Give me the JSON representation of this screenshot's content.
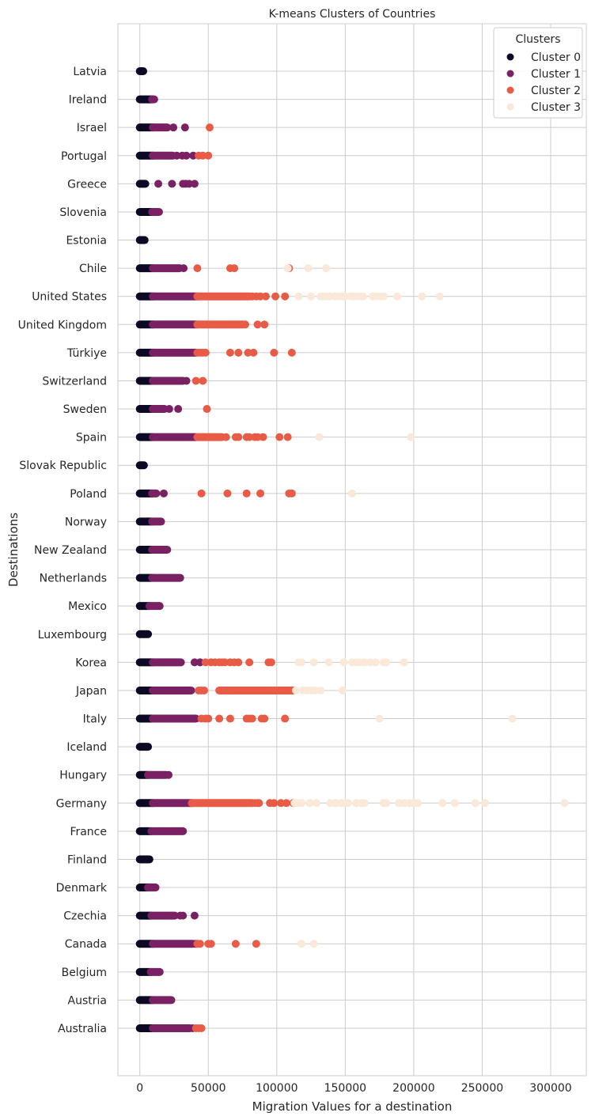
{
  "chart_data": {
    "type": "scatter",
    "title": "K-means Clusters of Countries",
    "xlabel": "Migration Values for a destination",
    "ylabel": "Destinations",
    "xlim": [
      -16000,
      326000
    ],
    "x_ticks": [
      "0",
      "50000",
      "100000",
      "150000",
      "200000",
      "250000",
      "300000"
    ],
    "x_tick_values": [
      0,
      50000,
      100000,
      150000,
      200000,
      250000,
      300000
    ],
    "grid": true,
    "legend": {
      "title": "Clusters",
      "position": "top-right"
    },
    "categories": [
      "Australia",
      "Austria",
      "Belgium",
      "Canada",
      "Czechia",
      "Denmark",
      "Finland",
      "France",
      "Germany",
      "Hungary",
      "Iceland",
      "Italy",
      "Japan",
      "Korea",
      "Luxembourg",
      "Mexico",
      "Netherlands",
      "New Zealand",
      "Norway",
      "Poland",
      "Slovak Republic",
      "Spain",
      "Sweden",
      "Switzerland",
      "Türkiye",
      "United Kingdom",
      "United States",
      "Chile",
      "Estonia",
      "Slovenia",
      "Greece",
      "Portugal",
      "Israel",
      "Ireland",
      "Latvia"
    ],
    "series": [
      {
        "name": "Cluster 0",
        "color": "#0b0924",
        "ranges": {
          "Australia": [
            0,
            9500
          ],
          "Austria": [
            0,
            9500
          ],
          "Belgium": [
            0,
            8000
          ],
          "Canada": [
            0,
            9500
          ],
          "Czechia": [
            0,
            8500
          ],
          "Denmark": [
            0,
            6000
          ],
          "Finland": [
            0,
            7000
          ],
          "France": [
            0,
            8500
          ],
          "Germany": [
            0,
            9500
          ],
          "Hungary": [
            0,
            6000
          ],
          "Iceland": [
            0,
            6000
          ],
          "Italy": [
            0,
            9500
          ],
          "Japan": [
            0,
            9500
          ],
          "Korea": [
            0,
            9500
          ],
          "Luxembourg": [
            0,
            6000
          ],
          "Mexico": [
            0,
            7000
          ],
          "Netherlands": [
            0,
            9000
          ],
          "New Zealand": [
            0,
            9000
          ],
          "Norway": [
            0,
            9000
          ],
          "Poland": [
            0,
            9000
          ],
          "Slovak Republic": [
            0,
            3000
          ],
          "Spain": [
            0,
            9500
          ],
          "Sweden": [
            0,
            9500
          ],
          "Switzerland": [
            0,
            9500
          ],
          "Türkiye": [
            0,
            9500
          ],
          "United Kingdom": [
            0,
            9500
          ],
          "United States": [
            0,
            9500
          ],
          "Chile": [
            0,
            9500
          ],
          "Estonia": [
            0,
            3500
          ],
          "Slovenia": [
            0,
            9000
          ],
          "Greece": [
            0,
            4000
          ],
          "Portugal": [
            0,
            9500
          ],
          "Israel": [
            0,
            9500
          ],
          "Ireland": [
            0,
            9000
          ],
          "Latvia": [
            0,
            2500
          ]
        },
        "points": {}
      },
      {
        "name": "Cluster 1",
        "color": "#7a2163",
        "ranges": {
          "Australia": [
            9500,
            36500
          ],
          "Austria": [
            9500,
            23000
          ],
          "Belgium": [
            8000,
            14500
          ],
          "Canada": [
            9500,
            38500
          ],
          "Czechia": [
            8500,
            25500
          ],
          "Denmark": [
            6000,
            11500
          ],
          "France": [
            8500,
            31500
          ],
          "Germany": [
            9500,
            38000
          ],
          "Hungary": [
            6000,
            19000
          ],
          "Italy": [
            9500,
            41000
          ],
          "Japan": [
            9500,
            36500
          ],
          "Korea": [
            9500,
            30000
          ],
          "Mexico": [
            7000,
            14500
          ],
          "Netherlands": [
            9000,
            29500
          ],
          "New Zealand": [
            9000,
            20000
          ],
          "Norway": [
            9000,
            15500
          ],
          "Poland": [
            9000,
            12000
          ],
          "Spain": [
            9500,
            41000
          ],
          "Sweden": [
            9500,
            18000
          ],
          "Switzerland": [
            9500,
            31500
          ],
          "Türkiye": [
            9500,
            41000
          ],
          "United Kingdom": [
            9500,
            41500
          ],
          "United States": [
            9500,
            42000
          ],
          "Chile": [
            9500,
            29000
          ],
          "Slovenia": [
            9000,
            14000
          ],
          "Portugal": [
            9500,
            24000
          ],
          "Israel": [
            9500,
            20000
          ],
          "Ireland": [
            9000,
            10500
          ]
        },
        "points": {
          "Australia": [
            38500
          ],
          "Canada": [
            40500,
            42000
          ],
          "Czechia": [
            29500,
            31500,
            40000
          ],
          "Hungary": [
            21000
          ],
          "Japan": [
            37500
          ],
          "Korea": [
            40000,
            44000
          ],
          "Poland": [
            17500
          ],
          "Sweden": [
            21500,
            28000
          ],
          "Switzerland": [
            34000
          ],
          "Chile": [
            32000
          ],
          "Greece": [
            13500,
            23500,
            31500,
            33500,
            36000,
            40000
          ],
          "Portugal": [
            27000,
            31000,
            34000,
            39000
          ],
          "Israel": [
            24500,
            33000
          ]
        }
      },
      {
        "name": "Cluster 2",
        "color": "#e85c47",
        "ranges": {
          "Germany": [
            38000,
            82000
          ],
          "Japan": [
            58000,
            112000
          ],
          "United States": [
            42000,
            80000
          ],
          "United Kingdom": [
            42000,
            75000
          ],
          "Spain": [
            42000,
            60000
          ]
        },
        "points": {
          "Australia": [
            41000,
            43000,
            45000
          ],
          "Canada": [
            42000,
            44000,
            50000,
            52000,
            70000,
            85000
          ],
          "Germany": [
            84000,
            86000,
            87000,
            95000,
            98000,
            103000,
            107000,
            112000
          ],
          "Italy": [
            45000,
            48000,
            50000,
            58000,
            66000,
            78000,
            80000,
            82000,
            89000,
            91000,
            106000
          ],
          "Japan": [
            43000,
            45000,
            47000
          ],
          "Korea": [
            48000,
            52000,
            55000,
            58000,
            60000,
            62000,
            66000,
            69000,
            72000,
            80000,
            94000,
            96000
          ],
          "Poland": [
            45000,
            64000,
            78000,
            88000,
            109000,
            111000
          ],
          "Spain": [
            63000,
            70000,
            72000,
            78000,
            80000,
            84000,
            86000,
            90000,
            102000,
            108000
          ],
          "Sweden": [
            49000
          ],
          "Switzerland": [
            41000,
            46000
          ],
          "Türkiye": [
            42000,
            44000,
            46000,
            48000,
            66000,
            72000,
            79000,
            83000,
            98000,
            111000
          ],
          "United Kingdom": [
            77000,
            86000,
            91000
          ],
          "United States": [
            82000,
            85000,
            88000,
            92000,
            99000,
            106000
          ],
          "Chile": [
            42000,
            66000,
            69000,
            109000
          ],
          "Portugal": [
            43000,
            46000,
            50000
          ],
          "Israel": [
            51000
          ]
        }
      },
      {
        "name": "Cluster 3",
        "color": "#fae8d8",
        "ranges": {},
        "points": {
          "Canada": [
            118000,
            127000
          ],
          "Germany": [
            113000,
            116000,
            118000,
            124000,
            129000,
            139000,
            143000,
            147000,
            150000,
            152000,
            158000,
            162000,
            164000,
            178000,
            180000,
            189000,
            193000,
            197000,
            200000,
            203000,
            221000,
            230000,
            245000,
            252000,
            310000
          ],
          "Italy": [
            175000,
            272000
          ],
          "Japan": [
            114000,
            119000,
            122000,
            125000,
            128000,
            132000,
            148000
          ],
          "Korea": [
            116000,
            118000,
            127000,
            138000,
            149000,
            155000,
            158000,
            161000,
            164000,
            168000,
            172000,
            178000,
            180000,
            193000
          ],
          "Poland": [
            155000
          ],
          "Spain": [
            131000,
            198000
          ],
          "United States": [
            116000,
            125000,
            132000,
            134000,
            137000,
            139000,
            143000,
            145000,
            148000,
            150000,
            154000,
            156000,
            159000,
            161000,
            163000,
            170000,
            173000,
            176000,
            178000,
            188000,
            206000,
            219000
          ],
          "Chile": [
            108000,
            123000,
            136000
          ]
        }
      }
    ]
  }
}
